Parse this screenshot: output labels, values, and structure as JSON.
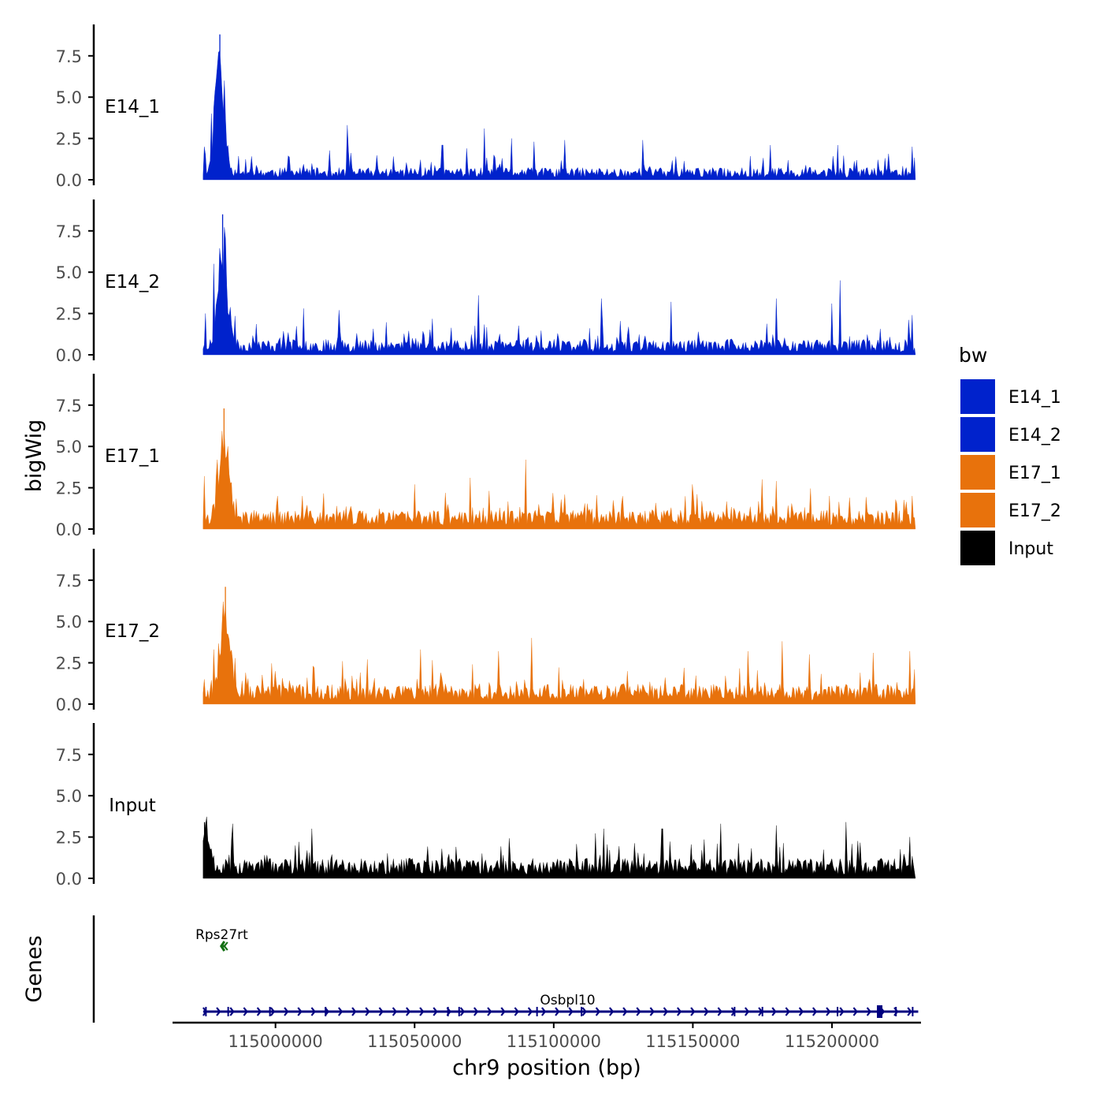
{
  "chart_data": {
    "type": "area",
    "title": "",
    "xlabel": "chr9 position (bp)",
    "ylabel": "bigWig",
    "genes_label": "Genes",
    "xlim": [
      114963000,
      115232000
    ],
    "x_ticks": [
      115000000,
      115050000,
      115100000,
      115150000,
      115200000
    ],
    "x_tick_labels": [
      "115000000",
      "115050000",
      "115100000",
      "115150000",
      "115200000"
    ],
    "ylim": [
      0,
      9.4
    ],
    "y_ticks": [
      0,
      2.5,
      5,
      7.5
    ],
    "y_tick_labels": [
      "0.0",
      "2.5",
      "5.0",
      "7.5"
    ],
    "legend": {
      "title": "bw",
      "position": "right",
      "entries": [
        {
          "label": "E14_1",
          "color": "#0022CC"
        },
        {
          "label": "E14_2",
          "color": "#0022CC"
        },
        {
          "label": "E17_1",
          "color": "#E8720C"
        },
        {
          "label": "E17_2",
          "color": "#E8720C"
        },
        {
          "label": "Input",
          "color": "#000000"
        }
      ]
    },
    "signal_start": 114974000,
    "signal_end": 115230000,
    "series": [
      {
        "name": "E14_1",
        "color": "#0022CC",
        "base": 0.55,
        "noise": 0.55,
        "peak_x": 114980000,
        "peak_y": 8.8,
        "seed": 11,
        "spikes": [
          [
            114974500,
            2.0
          ],
          [
            114977000,
            4.0
          ],
          [
            114978500,
            6.0
          ],
          [
            114981500,
            6.0
          ],
          [
            115026000,
            3.3
          ],
          [
            115060000,
            2.1
          ],
          [
            115075000,
            3.1
          ],
          [
            115085000,
            2.5
          ],
          [
            115093000,
            2.3
          ],
          [
            115104000,
            2.4
          ],
          [
            115132000,
            2.4
          ],
          [
            115178000,
            2.1
          ],
          [
            115202000,
            2.1
          ],
          [
            115229000,
            2.0
          ]
        ]
      },
      {
        "name": "E14_2",
        "color": "#0022CC",
        "base": 0.7,
        "noise": 0.6,
        "peak_x": 114981000,
        "peak_y": 8.5,
        "seed": 23,
        "spikes": [
          [
            114975000,
            2.5
          ],
          [
            114978000,
            5.5
          ],
          [
            114982000,
            7.0
          ],
          [
            115010000,
            2.8
          ],
          [
            115023000,
            2.7
          ],
          [
            115073000,
            3.6
          ],
          [
            115117000,
            3.4
          ],
          [
            115142000,
            3.2
          ],
          [
            115180000,
            3.4
          ],
          [
            115200000,
            3.1
          ],
          [
            115203000,
            4.5
          ],
          [
            115229000,
            2.4
          ]
        ]
      },
      {
        "name": "E17_1",
        "color": "#E8720C",
        "base": 0.85,
        "noise": 0.7,
        "peak_x": 114981500,
        "peak_y": 7.3,
        "seed": 37,
        "spikes": [
          [
            114974500,
            3.2
          ],
          [
            114979000,
            4.2
          ],
          [
            114983000,
            5.0
          ],
          [
            115050000,
            2.7
          ],
          [
            115070000,
            3.1
          ],
          [
            115090000,
            4.2
          ],
          [
            115150000,
            2.7
          ],
          [
            115175000,
            3.0
          ],
          [
            115180000,
            2.9
          ],
          [
            115229000,
            2.0
          ]
        ]
      },
      {
        "name": "E17_2",
        "color": "#E8720C",
        "base": 0.9,
        "noise": 0.75,
        "peak_x": 114982000,
        "peak_y": 7.1,
        "seed": 53,
        "spikes": [
          [
            114974500,
            1.5
          ],
          [
            114978000,
            3.3
          ],
          [
            115052000,
            3.3
          ],
          [
            115080000,
            3.2
          ],
          [
            115092000,
            4.0
          ],
          [
            115170000,
            3.2
          ],
          [
            115182000,
            3.8
          ],
          [
            115192000,
            3.0
          ],
          [
            115215000,
            3.1
          ],
          [
            115228000,
            3.2
          ]
        ]
      },
      {
        "name": "Input",
        "color": "#000000",
        "base": 0.9,
        "noise": 0.8,
        "peak_x": 114974500,
        "peak_y": 3.4,
        "seed": 71,
        "spikes": [
          [
            114984500,
            3.3
          ],
          [
            115013000,
            3.0
          ],
          [
            115118000,
            3.0
          ],
          [
            115139000,
            3.0
          ],
          [
            115160000,
            3.3
          ],
          [
            115180000,
            3.2
          ],
          [
            115205000,
            3.4
          ],
          [
            115228000,
            2.5
          ]
        ]
      }
    ],
    "genes": [
      {
        "name": "Rps27rt",
        "start": 114980500,
        "end": 114982000,
        "strand": "-",
        "color": "#137013",
        "row": 0
      },
      {
        "name": "Osbpl10",
        "start": 114974000,
        "end": 115231000,
        "strand": "+",
        "color": "#000080",
        "row": 1,
        "exons": [
          114975000,
          114983000,
          114998000,
          115018000,
          115062000,
          115066000,
          115094000,
          115110000,
          115165000,
          115175000,
          115202000,
          115217000,
          115223000,
          115229000
        ],
        "thick_exon": 115217000
      }
    ]
  }
}
